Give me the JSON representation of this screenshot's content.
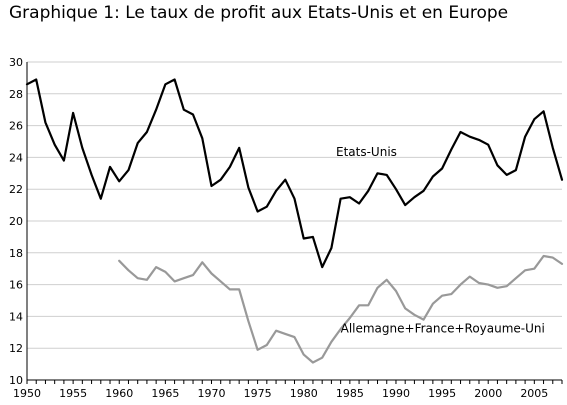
{
  "title": "Graphique 1: Le taux de profit aux Etats-Unis et en Europe",
  "chart_data": {
    "type": "line",
    "title": "Graphique 1: Le taux de profit aux Etats-Unis et en Europe",
    "xlabel": "",
    "ylabel": "",
    "xlim": [
      1950,
      2008
    ],
    "ylim": [
      10,
      30
    ],
    "x_ticks": [
      1950,
      1955,
      1960,
      1965,
      1970,
      1975,
      1980,
      1985,
      1990,
      1995,
      2000,
      2005
    ],
    "y_ticks": [
      10,
      12,
      14,
      16,
      18,
      20,
      22,
      24,
      26,
      28,
      30
    ],
    "grid": "horizontal",
    "legend": "none (series labelled directly on chart)",
    "series": [
      {
        "name": "Etats-Unis",
        "color": "#000000",
        "x": [
          1950,
          1951,
          1952,
          1953,
          1954,
          1955,
          1956,
          1957,
          1958,
          1959,
          1960,
          1961,
          1962,
          1963,
          1964,
          1965,
          1966,
          1967,
          1968,
          1969,
          1970,
          1971,
          1972,
          1973,
          1974,
          1975,
          1976,
          1977,
          1978,
          1979,
          1980,
          1981,
          1982,
          1983,
          1984,
          1985,
          1986,
          1987,
          1988,
          1989,
          1990,
          1991,
          1992,
          1993,
          1994,
          1995,
          1996,
          1997,
          1998,
          1999,
          2000,
          2001,
          2002,
          2003,
          2004,
          2005,
          2006,
          2007,
          2008
        ],
        "values": [
          28.6,
          28.9,
          26.2,
          24.8,
          23.8,
          26.8,
          24.6,
          22.9,
          21.4,
          23.4,
          22.5,
          23.2,
          24.9,
          25.6,
          27.0,
          28.6,
          28.9,
          27.0,
          26.7,
          25.2,
          22.2,
          22.6,
          23.4,
          24.6,
          22.1,
          20.6,
          20.9,
          21.9,
          22.6,
          21.4,
          18.9,
          19.0,
          17.1,
          18.3,
          21.4,
          21.5,
          21.1,
          21.9,
          23.0,
          22.9,
          22.0,
          21.0,
          21.5,
          21.9,
          22.8,
          23.3,
          24.5,
          25.6,
          25.3,
          25.1,
          24.8,
          23.5,
          22.9,
          23.2,
          25.3,
          26.4,
          26.9,
          24.6,
          22.6
        ]
      },
      {
        "name": "Allemagne+France+Royaume-Uni",
        "color": "#999999",
        "x": [
          1960,
          1961,
          1962,
          1963,
          1964,
          1965,
          1966,
          1967,
          1968,
          1969,
          1970,
          1971,
          1972,
          1973,
          1974,
          1975,
          1976,
          1977,
          1978,
          1979,
          1980,
          1981,
          1982,
          1983,
          1984,
          1985,
          1986,
          1987,
          1988,
          1989,
          1990,
          1991,
          1992,
          1993,
          1994,
          1995,
          1996,
          1997,
          1998,
          1999,
          2000,
          2001,
          2002,
          2003,
          2004,
          2005,
          2006,
          2007,
          2008
        ],
        "values": [
          17.5,
          16.9,
          16.4,
          16.3,
          17.1,
          16.8,
          16.2,
          16.4,
          16.6,
          17.4,
          16.7,
          16.2,
          15.7,
          15.7,
          13.7,
          11.9,
          12.2,
          13.1,
          12.9,
          12.7,
          11.6,
          11.1,
          11.4,
          12.4,
          13.2,
          13.9,
          14.7,
          14.7,
          15.8,
          16.3,
          15.6,
          14.5,
          14.1,
          13.8,
          14.8,
          15.3,
          15.4,
          16.0,
          16.5,
          16.1,
          16.0,
          15.8,
          15.9,
          16.4,
          16.9,
          17.0,
          17.8,
          17.7,
          17.3
        ]
      }
    ],
    "annotations": [
      {
        "text": "Etats-Unis",
        "x": 1983.5,
        "y": 24.1
      },
      {
        "text": "Allemagne+France+Royaume-Uni",
        "x": 1984,
        "y": 13.0
      }
    ]
  }
}
